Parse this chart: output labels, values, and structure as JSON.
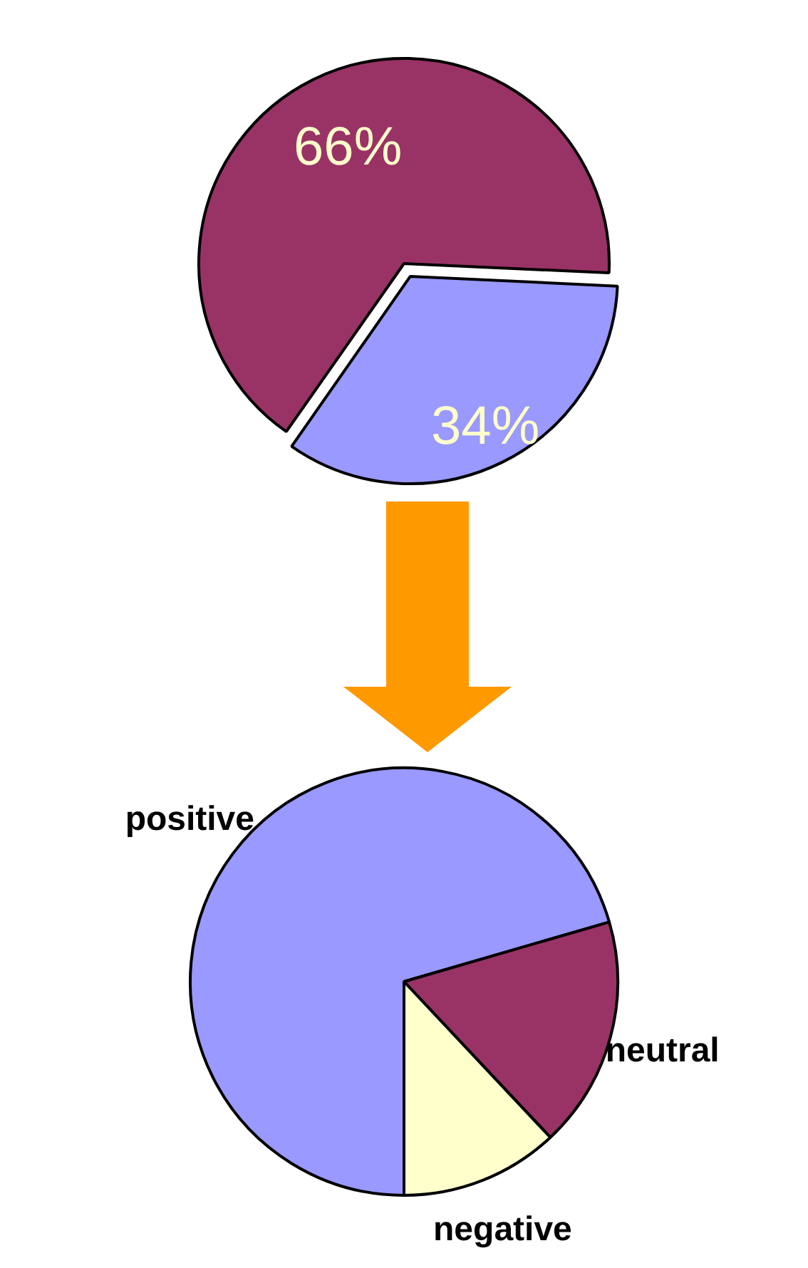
{
  "chart_data": [
    {
      "type": "pie",
      "categories": [
        null,
        null
      ],
      "values": [
        66,
        34
      ],
      "colors": [
        "#993366",
        "#9999ff"
      ],
      "value_labels": [
        "66%",
        "34%"
      ]
    },
    {
      "type": "pie",
      "categories": [
        "positive",
        "neutral",
        "negative"
      ],
      "values": [
        70.5,
        17.5,
        12
      ],
      "colors": [
        "#9999ff",
        "#993366",
        "#ffffcc"
      ]
    }
  ]
}
